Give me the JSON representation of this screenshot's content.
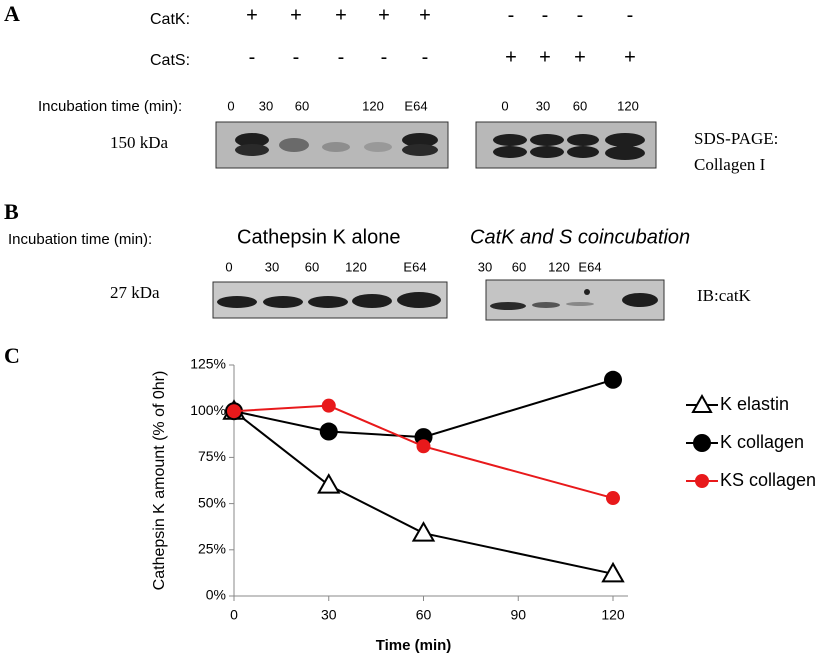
{
  "panel_a": {
    "label": "A",
    "catk_label": "CatK:",
    "catk_signs": [
      "+",
      "+",
      "+",
      "+",
      "+",
      "-",
      "-",
      "-",
      "-"
    ],
    "cats_label": "CatS:",
    "cats_signs": [
      "-",
      "-",
      "-",
      "-",
      "-",
      "+",
      "+",
      "+",
      "+"
    ],
    "incubation_label": "Incubation time (min):",
    "lanes": [
      "0",
      "30",
      "60",
      "120",
      "E64",
      "0",
      "30",
      "60",
      "120"
    ],
    "marker": "150 kDa",
    "caption_line1": "SDS-PAGE:",
    "caption_line2": "Collagen I"
  },
  "panel_b": {
    "label": "B",
    "incubation_label": "Incubation time (min):",
    "left_title": "Cathepsin K alone",
    "right_title": "CatK and S coincubation",
    "left_lanes": [
      "0",
      "30",
      "60",
      "120",
      "E64"
    ],
    "right_lanes": [
      "30",
      "60",
      "120",
      "E64"
    ],
    "marker": "27 kDa",
    "caption": "IB:catK"
  },
  "panel_c": {
    "label": "C"
  },
  "chart_data": {
    "type": "line",
    "x_label": "Time (min)",
    "y_label": "Cathepsin K amount (% of 0hr)",
    "x": [
      0,
      30,
      60,
      120
    ],
    "xlim": [
      0,
      120
    ],
    "xticks": [
      0,
      30,
      60,
      90,
      120
    ],
    "ylim": [
      0,
      125
    ],
    "yticks": [
      {
        "value": 0,
        "label": "0%"
      },
      {
        "value": 25,
        "label": "25%"
      },
      {
        "value": 50,
        "label": "50%"
      },
      {
        "value": 75,
        "label": "75%"
      },
      {
        "value": 100,
        "label": "100%"
      },
      {
        "value": 125,
        "label": "125%"
      }
    ],
    "grid": false,
    "legend": "right",
    "series": [
      {
        "name": "K elastin",
        "color": "#000000",
        "marker": "triangle",
        "values": [
          100,
          60,
          34,
          12
        ]
      },
      {
        "name": "K collagen",
        "color": "#000000",
        "marker": "circle",
        "values": [
          100,
          89,
          86,
          117
        ]
      },
      {
        "name": "KS collagen",
        "color": "#e8191b",
        "marker": "circle",
        "values": [
          100,
          103,
          81,
          53
        ]
      }
    ]
  }
}
